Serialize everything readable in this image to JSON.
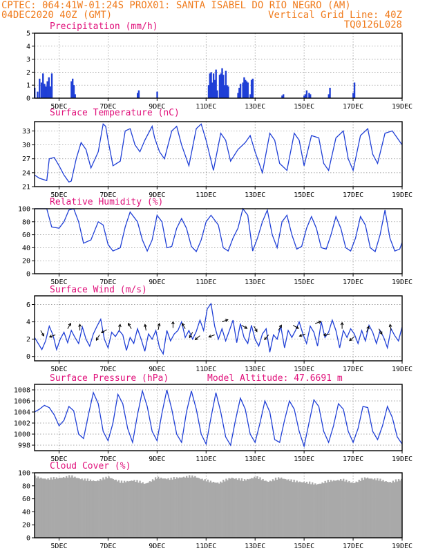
{
  "header": {
    "line1_left": "CPTEC:   064:41W-01:24S   PROX01: SANTA ISABEL DO RIO NEGRO (AM)",
    "line2_left": "04DEC2020 40Z (GMT)",
    "line2_right": "Vertical Grid Line: 40Z",
    "line3_right": "TQ0126L028"
  },
  "x_axis": {
    "start_day": 4,
    "end_day": 19,
    "tick_days": [
      5,
      7,
      9,
      11,
      13,
      15,
      17,
      19
    ],
    "tick_labels": [
      "5DEC",
      "7DEC",
      "9DEC",
      "11DEC",
      "13DEC",
      "15DEC",
      "17DEC",
      "19DEC"
    ]
  },
  "chart_data": [
    {
      "id": "precip",
      "type": "bar",
      "title": "Precipitation (mm/h)",
      "ylim": [
        0,
        5
      ],
      "yticks": [
        0,
        1,
        2,
        3,
        4,
        5
      ],
      "series": [
        {
          "x": [
            4.0,
            4.12,
            4.2,
            4.28,
            4.34,
            4.4,
            4.46,
            4.52,
            4.58,
            4.64,
            4.7,
            5.5,
            5.55,
            5.6,
            5.65,
            8.2,
            8.25,
            9.0,
            11.1,
            11.15,
            11.2,
            11.25,
            11.3,
            11.35,
            11.4,
            11.45,
            11.55,
            11.6,
            11.65,
            11.7,
            11.75,
            11.8,
            11.85,
            11.9,
            12.3,
            12.35,
            12.4,
            12.5,
            12.55,
            12.6,
            12.65,
            12.7,
            12.8,
            12.85,
            12.9,
            14.1,
            14.15,
            15.0,
            15.05,
            15.1,
            15.2,
            15.25,
            16.0,
            16.05,
            17.0,
            17.05
          ],
          "values": [
            0.8,
            0.5,
            1.5,
            1.2,
            1.9,
            1.1,
            0.9,
            1.3,
            1.6,
            0.9,
            1.9,
            1.3,
            1.5,
            1.0,
            0.3,
            0.4,
            0.6,
            0.5,
            1.0,
            1.9,
            2.0,
            1.2,
            1.9,
            1.4,
            2.2,
            0.6,
            1.8,
            1.9,
            2.3,
            1.8,
            1.0,
            2.1,
            1.0,
            0.9,
            0.4,
            0.8,
            1.1,
            1.2,
            1.6,
            1.4,
            1.3,
            1.2,
            0.3,
            1.4,
            1.5,
            0.2,
            0.3,
            0.2,
            0.3,
            0.6,
            0.4,
            0.3,
            0.3,
            0.8,
            0.4,
            1.2
          ]
        }
      ]
    },
    {
      "id": "temp",
      "type": "line",
      "title": "Surface Temperature (nC)",
      "ylim": [
        21,
        35
      ],
      "yticks": [
        21,
        24,
        27,
        30,
        33
      ],
      "series": [
        {
          "x": [
            4.0,
            4.2,
            4.5,
            4.6,
            4.8,
            5.0,
            5.2,
            5.4,
            5.5,
            5.7,
            5.9,
            6.1,
            6.3,
            6.6,
            6.8,
            6.9,
            7.0,
            7.2,
            7.5,
            7.7,
            7.9,
            8.1,
            8.3,
            8.5,
            8.8,
            8.9,
            9.1,
            9.3,
            9.6,
            9.8,
            10.0,
            10.3,
            10.6,
            10.8,
            11.0,
            11.3,
            11.6,
            11.8,
            12.0,
            12.3,
            12.6,
            12.8,
            13.0,
            13.3,
            13.6,
            13.8,
            14.0,
            14.3,
            14.6,
            14.8,
            15.0,
            15.3,
            15.6,
            15.8,
            16.0,
            16.3,
            16.6,
            16.8,
            17.0,
            17.3,
            17.6,
            17.8,
            18.0,
            18.3,
            18.6,
            18.8,
            19.0
          ],
          "values": [
            23.5,
            22.8,
            22.3,
            27.0,
            27.3,
            25.5,
            23.5,
            22.0,
            22.2,
            27.0,
            30.5,
            29.0,
            25.0,
            28.5,
            34.5,
            34.0,
            31.0,
            25.5,
            26.5,
            33.0,
            33.5,
            30.0,
            28.5,
            31.0,
            34.0,
            31.5,
            28.5,
            27.0,
            33.0,
            34.0,
            30.0,
            25.5,
            33.5,
            34.5,
            31.0,
            24.5,
            32.5,
            31.0,
            26.5,
            29.0,
            30.5,
            32.0,
            28.5,
            24.0,
            32.5,
            31.0,
            26.0,
            24.5,
            32.5,
            31.0,
            25.5,
            32.0,
            31.5,
            26.0,
            24.5,
            31.5,
            33.0,
            27.0,
            24.5,
            32.0,
            33.5,
            28.0,
            26.0,
            32.5,
            33.0,
            31.5,
            30.0
          ]
        }
      ]
    },
    {
      "id": "rh",
      "type": "line",
      "title": "Relative Humidity (%)",
      "ylim": [
        0,
        100
      ],
      "yticks": [
        0,
        20,
        40,
        60,
        80,
        100
      ],
      "series": [
        {
          "x": [
            4.0,
            4.3,
            4.5,
            4.7,
            5.0,
            5.2,
            5.4,
            5.6,
            5.8,
            6.0,
            6.3,
            6.6,
            6.8,
            7.0,
            7.2,
            7.5,
            7.7,
            7.9,
            8.2,
            8.4,
            8.6,
            8.8,
            9.0,
            9.2,
            9.4,
            9.6,
            9.8,
            10.0,
            10.2,
            10.4,
            10.6,
            10.8,
            11.0,
            11.2,
            11.5,
            11.7,
            11.9,
            12.1,
            12.3,
            12.5,
            12.7,
            12.9,
            13.1,
            13.3,
            13.5,
            13.7,
            13.9,
            14.1,
            14.3,
            14.5,
            14.7,
            14.9,
            15.1,
            15.3,
            15.5,
            15.7,
            15.9,
            16.1,
            16.3,
            16.5,
            16.7,
            16.9,
            17.1,
            17.3,
            17.5,
            17.7,
            17.9,
            18.1,
            18.3,
            18.5,
            18.7,
            18.9,
            19.0
          ],
          "values": [
            100,
            100,
            100,
            72,
            70,
            80,
            98,
            100,
            80,
            47,
            52,
            80,
            75,
            45,
            35,
            40,
            72,
            95,
            80,
            52,
            35,
            52,
            90,
            80,
            40,
            42,
            70,
            85,
            70,
            42,
            34,
            52,
            80,
            90,
            75,
            40,
            35,
            55,
            70,
            100,
            90,
            35,
            55,
            80,
            98,
            60,
            40,
            80,
            90,
            60,
            38,
            42,
            70,
            88,
            70,
            40,
            38,
            60,
            88,
            70,
            40,
            35,
            55,
            88,
            75,
            40,
            34,
            60,
            98,
            55,
            35,
            38,
            48
          ]
        }
      ]
    },
    {
      "id": "wind",
      "type": "line",
      "title": "Surface Wind (m/s)",
      "ylim": [
        -0.5,
        7
      ],
      "yticks": [
        0,
        2,
        4,
        6
      ],
      "series": [
        {
          "x": [
            4.0,
            4.15,
            4.3,
            4.45,
            4.6,
            4.75,
            4.9,
            5.05,
            5.2,
            5.35,
            5.5,
            5.65,
            5.8,
            5.95,
            6.1,
            6.25,
            6.4,
            6.55,
            6.7,
            6.85,
            7.0,
            7.15,
            7.3,
            7.45,
            7.6,
            7.75,
            7.9,
            8.05,
            8.2,
            8.35,
            8.5,
            8.65,
            8.8,
            8.95,
            9.1,
            9.25,
            9.4,
            9.55,
            9.7,
            9.85,
            10.0,
            10.15,
            10.3,
            10.45,
            10.6,
            10.75,
            10.9,
            11.05,
            11.2,
            11.35,
            11.5,
            11.65,
            11.8,
            11.95,
            12.1,
            12.25,
            12.4,
            12.55,
            12.7,
            12.85,
            13.0,
            13.15,
            13.3,
            13.45,
            13.6,
            13.75,
            13.9,
            14.05,
            14.2,
            14.35,
            14.5,
            14.65,
            14.8,
            14.95,
            15.1,
            15.25,
            15.4,
            15.55,
            15.7,
            15.85,
            16.0,
            16.15,
            16.3,
            16.45,
            16.6,
            16.75,
            16.9,
            17.05,
            17.2,
            17.35,
            17.5,
            17.65,
            17.8,
            17.95,
            18.1,
            18.25,
            18.4,
            18.55,
            18.7,
            18.85,
            19.0
          ],
          "values": [
            2.2,
            1.5,
            0.8,
            1.8,
            3.5,
            2.5,
            0.8,
            2.0,
            2.8,
            1.6,
            3.0,
            2.2,
            1.5,
            3.4,
            2.0,
            1.2,
            2.6,
            3.5,
            4.3,
            2.0,
            1.0,
            2.8,
            2.3,
            3.0,
            2.5,
            0.7,
            2.2,
            1.5,
            3.2,
            2.0,
            0.6,
            2.6,
            2.0,
            3.0,
            1.0,
            0.3,
            3.0,
            1.8,
            2.6,
            3.0,
            4.0,
            2.2,
            3.0,
            2.0,
            2.9,
            4.2,
            3.0,
            5.5,
            6.1,
            3.5,
            2.0,
            3.2,
            1.8,
            3.0,
            4.2,
            1.6,
            3.8,
            2.2,
            1.5,
            3.6,
            2.0,
            1.2,
            2.6,
            3.2,
            0.5,
            2.5,
            2.0,
            3.5,
            1.0,
            3.0,
            2.2,
            3.0,
            4.0,
            2.6,
            1.5,
            3.5,
            2.8,
            1.2,
            4.0,
            2.2,
            2.8,
            4.2,
            3.0,
            1.0,
            3.0,
            2.2,
            3.2,
            2.6,
            1.5,
            3.0,
            1.8,
            3.6,
            2.8,
            1.5,
            3.0,
            2.2,
            1.0,
            3.2,
            2.4,
            1.8,
            3.4
          ]
        }
      ],
      "arrows": [
        {
          "x": 4.25,
          "y": 3.0,
          "dir": 300
        },
        {
          "x": 4.85,
          "y": 2.5,
          "dir": 200
        },
        {
          "x": 5.35,
          "y": 3.2,
          "dir": 60
        },
        {
          "x": 5.85,
          "y": 3.0,
          "dir": 90
        },
        {
          "x": 6.65,
          "y": 2.5,
          "dir": 240
        },
        {
          "x": 6.95,
          "y": 3.1,
          "dir": 210
        },
        {
          "x": 7.45,
          "y": 3.0,
          "dir": 80
        },
        {
          "x": 7.95,
          "y": 3.2,
          "dir": 120
        },
        {
          "x": 8.55,
          "y": 3.0,
          "dir": 100
        },
        {
          "x": 9.05,
          "y": 3.1,
          "dir": 80
        },
        {
          "x": 9.65,
          "y": 3.3,
          "dir": 90
        },
        {
          "x": 10.15,
          "y": 3.2,
          "dir": 120
        },
        {
          "x": 10.45,
          "y": 2.8,
          "dir": 240
        },
        {
          "x": 10.75,
          "y": 2.4,
          "dir": 220
        },
        {
          "x": 11.35,
          "y": 2.5,
          "dir": 200
        },
        {
          "x": 11.65,
          "y": 4.0,
          "dir": 20
        },
        {
          "x": 12.45,
          "y": 3.6,
          "dir": 330
        },
        {
          "x": 12.95,
          "y": 3.5,
          "dir": 300
        },
        {
          "x": 13.55,
          "y": 2.5,
          "dir": 230
        },
        {
          "x": 13.95,
          "y": 3.0,
          "dir": 60
        },
        {
          "x": 14.55,
          "y": 3.6,
          "dir": 330
        },
        {
          "x": 15.05,
          "y": 2.6,
          "dir": 200
        },
        {
          "x": 15.45,
          "y": 3.8,
          "dir": 20
        },
        {
          "x": 16.05,
          "y": 2.6,
          "dir": 190
        },
        {
          "x": 16.55,
          "y": 3.2,
          "dir": 90
        },
        {
          "x": 17.05,
          "y": 2.3,
          "dir": 220
        },
        {
          "x": 17.55,
          "y": 2.8,
          "dir": 70
        },
        {
          "x": 18.05,
          "y": 3.2,
          "dir": 300
        },
        {
          "x": 18.55,
          "y": 3.0,
          "dir": 100
        }
      ]
    },
    {
      "id": "pressure",
      "type": "line",
      "title": "Surface Pressure (hPa)",
      "subtitle": "Model Altitude: 47.6691 m",
      "ylim": [
        997,
        1009
      ],
      "yticks": [
        998,
        1000,
        1002,
        1004,
        1006,
        1008
      ],
      "series": [
        {
          "x": [
            4.0,
            4.2,
            4.4,
            4.6,
            4.8,
            5.0,
            5.2,
            5.4,
            5.6,
            5.8,
            6.0,
            6.2,
            6.4,
            6.6,
            6.8,
            7.0,
            7.2,
            7.4,
            7.6,
            7.8,
            8.0,
            8.2,
            8.4,
            8.6,
            8.8,
            9.0,
            9.2,
            9.4,
            9.6,
            9.8,
            10.0,
            10.2,
            10.4,
            10.6,
            10.8,
            11.0,
            11.2,
            11.4,
            11.6,
            11.8,
            12.0,
            12.2,
            12.4,
            12.6,
            12.8,
            13.0,
            13.2,
            13.4,
            13.6,
            13.8,
            14.0,
            14.2,
            14.4,
            14.6,
            14.8,
            15.0,
            15.2,
            15.4,
            15.6,
            15.8,
            16.0,
            16.2,
            16.4,
            16.6,
            16.8,
            17.0,
            17.2,
            17.4,
            17.6,
            17.8,
            18.0,
            18.2,
            18.4,
            18.6,
            18.8,
            19.0
          ],
          "values": [
            1004.0,
            1004.5,
            1005.2,
            1004.8,
            1003.5,
            1001.5,
            1002.5,
            1005.0,
            1004.2,
            1000.0,
            999.2,
            1003.5,
            1007.5,
            1005.5,
            1000.5,
            998.8,
            1002.0,
            1007.2,
            1005.5,
            1001.0,
            998.5,
            1003.5,
            1007.8,
            1005.0,
            1000.5,
            998.8,
            1003.8,
            1008.0,
            1004.5,
            1000.0,
            998.5,
            1004.0,
            1007.8,
            1004.5,
            1000.0,
            998.2,
            1003.0,
            1007.5,
            1004.0,
            999.5,
            998.0,
            1002.5,
            1006.5,
            1004.5,
            1000.0,
            998.5,
            1002.0,
            1006.0,
            1004.0,
            999.0,
            998.5,
            1002.5,
            1006.0,
            1004.5,
            1000.5,
            997.8,
            1002.0,
            1006.2,
            1005.0,
            1000.5,
            998.5,
            1001.5,
            1005.5,
            1004.5,
            1000.5,
            998.5,
            1001.0,
            1005.0,
            1004.8,
            1000.5,
            999.0,
            1001.5,
            1005.0,
            1003.0,
            999.5,
            998.2
          ]
        }
      ]
    },
    {
      "id": "cloud",
      "type": "area",
      "title": "Cloud Cover (%)",
      "ylim": [
        0,
        100
      ],
      "yticks": [
        0,
        20,
        40,
        60,
        80,
        100
      ],
      "series": [
        {
          "x": [
            4.0,
            4.5,
            5.0,
            5.5,
            6.0,
            6.5,
            7.0,
            7.5,
            8.0,
            8.5,
            9.0,
            9.5,
            10.0,
            10.5,
            11.0,
            11.5,
            12.0,
            12.5,
            13.0,
            13.5,
            14.0,
            14.5,
            15.0,
            15.5,
            16.0,
            16.5,
            17.0,
            17.5,
            18.0,
            18.5,
            19.0
          ],
          "values": [
            96,
            93,
            95,
            97,
            92,
            90,
            96,
            88,
            91,
            86,
            95,
            93,
            96,
            97,
            90,
            87,
            95,
            91,
            96,
            89,
            95,
            90,
            88,
            85,
            90,
            92,
            87,
            95,
            92,
            88,
            93
          ]
        }
      ]
    }
  ]
}
